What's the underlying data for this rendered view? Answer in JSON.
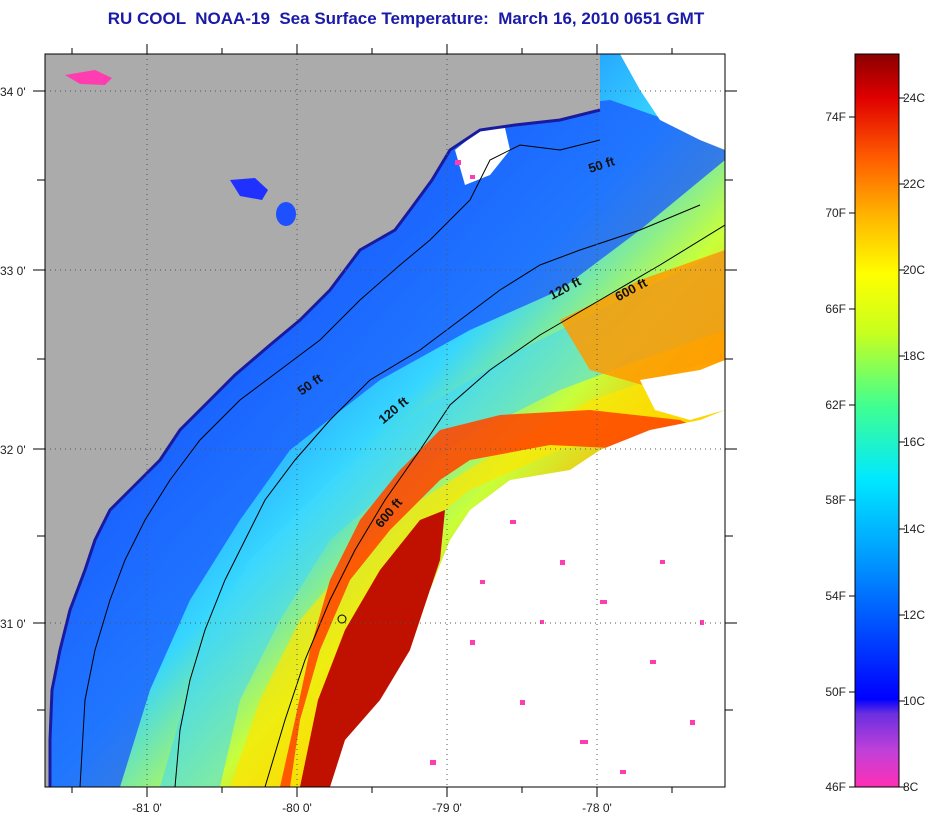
{
  "title": "RU COOL  NOAA-19  Sea Surface Temperature:  March 16, 2010 0651 GMT",
  "map": {
    "lat_ticks": [
      "34 0'",
      "33 0'",
      "32 0'",
      "31 0'"
    ],
    "lon_ticks": [
      "-81 0'",
      "-80 0'",
      "-79 0'",
      "-78 0'"
    ],
    "contours": [
      {
        "label": "50 ft",
        "depth_ft": 50
      },
      {
        "label": "50 ft",
        "depth_ft": 50
      },
      {
        "label": "120 ft",
        "depth_ft": 120
      },
      {
        "label": "120 ft",
        "depth_ft": 120
      },
      {
        "label": "600 ft",
        "depth_ft": 600
      },
      {
        "label": "600 ft",
        "depth_ft": 600
      }
    ],
    "colors": {
      "land": "#ababab",
      "cloud": "#ffffff",
      "coast_line": "#000000"
    }
  },
  "colorbar": {
    "fahrenheit": [
      "74F",
      "70F",
      "66F",
      "62F",
      "58F",
      "54F",
      "50F",
      "46F"
    ],
    "celsius": [
      "24C",
      "22C",
      "20C",
      "18C",
      "16C",
      "14C",
      "12C",
      "10C",
      "8C"
    ],
    "range_c": [
      8,
      25
    ]
  }
}
